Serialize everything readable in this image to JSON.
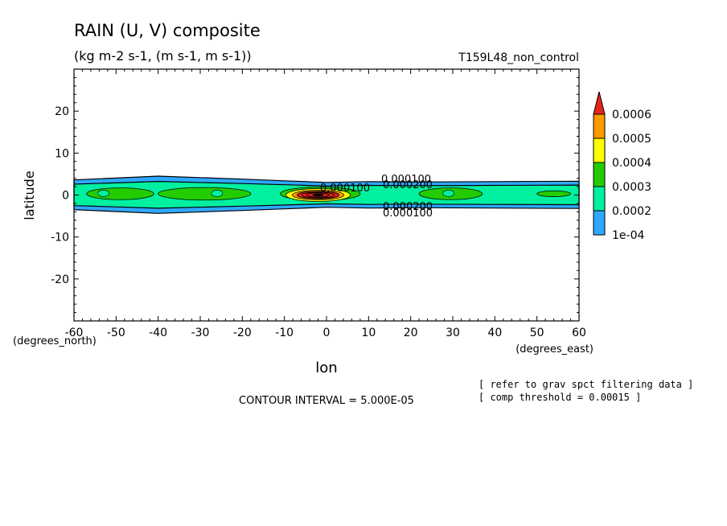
{
  "chart_data": {
    "type": "heatmap",
    "title": "RAIN (U, V) composite",
    "subtitle": "(kg m-2 s-1, (m s-1, m s-1))",
    "run_label": "T159L48_non_control",
    "xlabel": "lon",
    "ylabel": "latitude",
    "x_unit_label": "(degrees_east)",
    "y_unit_label": "(degrees_north)",
    "xlim": [
      -60,
      60
    ],
    "ylim": [
      -30,
      30
    ],
    "x_ticks": [
      -60,
      -50,
      -40,
      -30,
      -20,
      -10,
      0,
      10,
      20,
      30,
      40,
      50,
      60
    ],
    "y_ticks": [
      20,
      10,
      0,
      -10,
      -20
    ],
    "colorbar": {
      "levels": [
        "0.0006",
        "0.0005",
        "0.0004",
        "0.0003",
        "0.0002",
        "1e-04"
      ],
      "colors": [
        "#ff9900",
        "#ffff00",
        "#22cc00",
        "#00f0a0",
        "#2fa8ff",
        "#e6231b"
      ],
      "extend": "max"
    },
    "contour_labels": [
      "0.000100",
      "0.000200",
      "0.000100",
      "0.000200",
      "0.000100"
    ],
    "footer": {
      "contour_interval": "CONTOUR INTERVAL = 5.000E-05",
      "note1": "[ refer to grav spct filtering data ]",
      "note2": "[ comp threshold = 0.00015 ]"
    },
    "band": {
      "lon": [
        -60,
        -40,
        -20,
        -10,
        0,
        10,
        20,
        40,
        60
      ],
      "halfwidth_lat": [
        3.6,
        4.5,
        3.8,
        3.4,
        3.0,
        3.2,
        3.1,
        3.2,
        3.3
      ]
    }
  }
}
